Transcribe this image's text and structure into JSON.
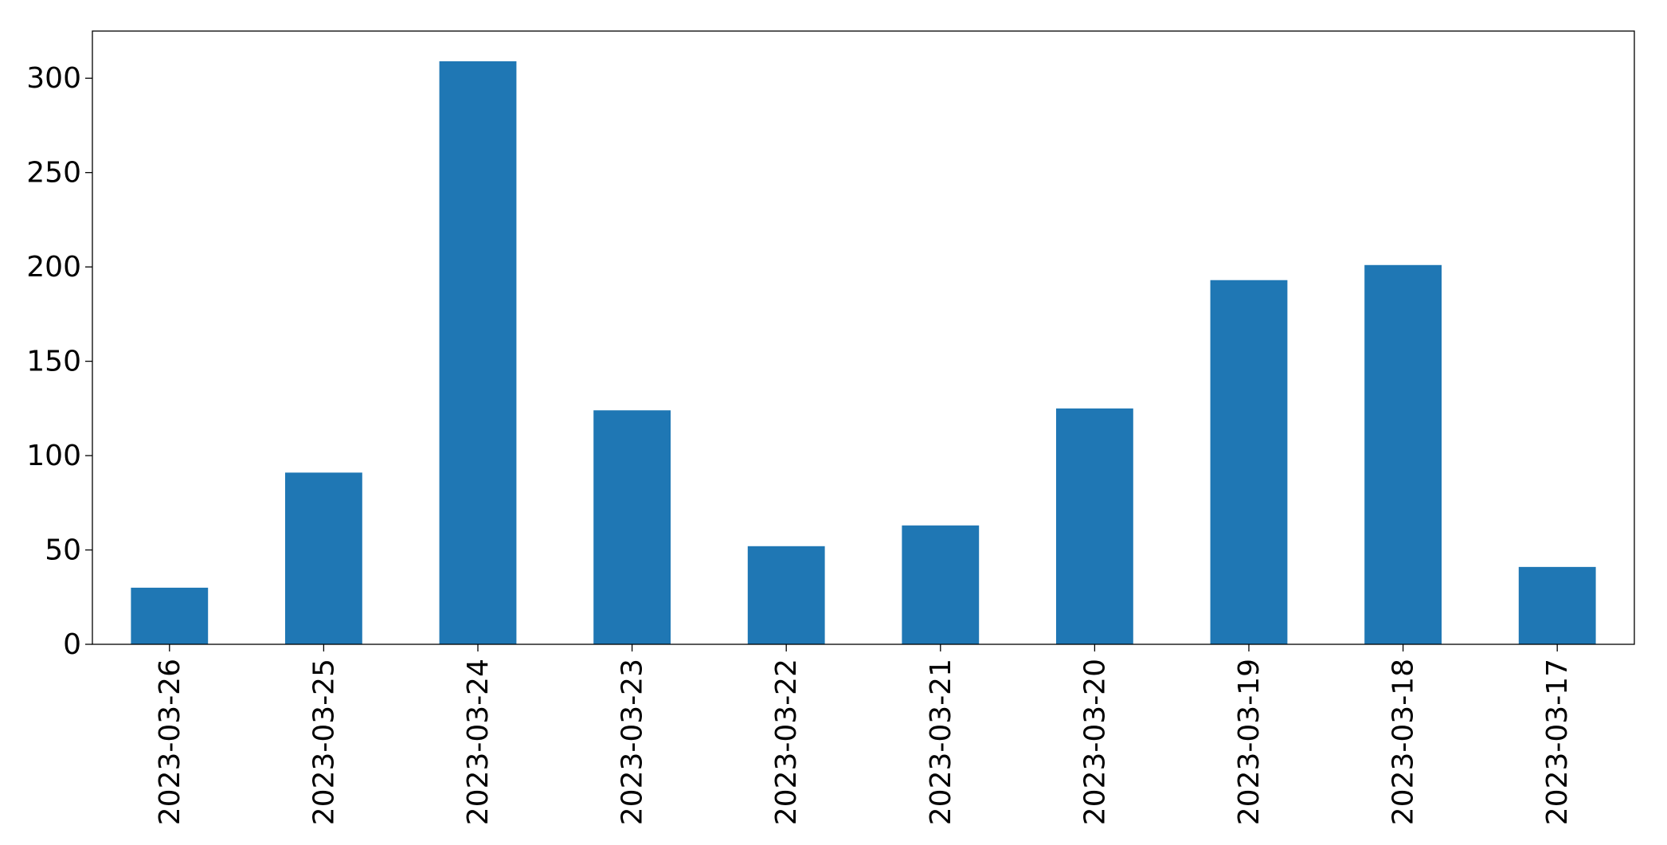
{
  "chart_data": {
    "type": "bar",
    "categories": [
      "2023-03-26",
      "2023-03-25",
      "2023-03-24",
      "2023-03-23",
      "2023-03-22",
      "2023-03-21",
      "2023-03-20",
      "2023-03-19",
      "2023-03-18",
      "2023-03-17"
    ],
    "values": [
      30,
      91,
      309,
      124,
      52,
      63,
      125,
      193,
      201,
      41
    ],
    "color": "#1f77b4",
    "ylim": [
      0,
      325
    ],
    "yticks": [
      0,
      50,
      100,
      150,
      200,
      250,
      300
    ],
    "grid": false
  }
}
